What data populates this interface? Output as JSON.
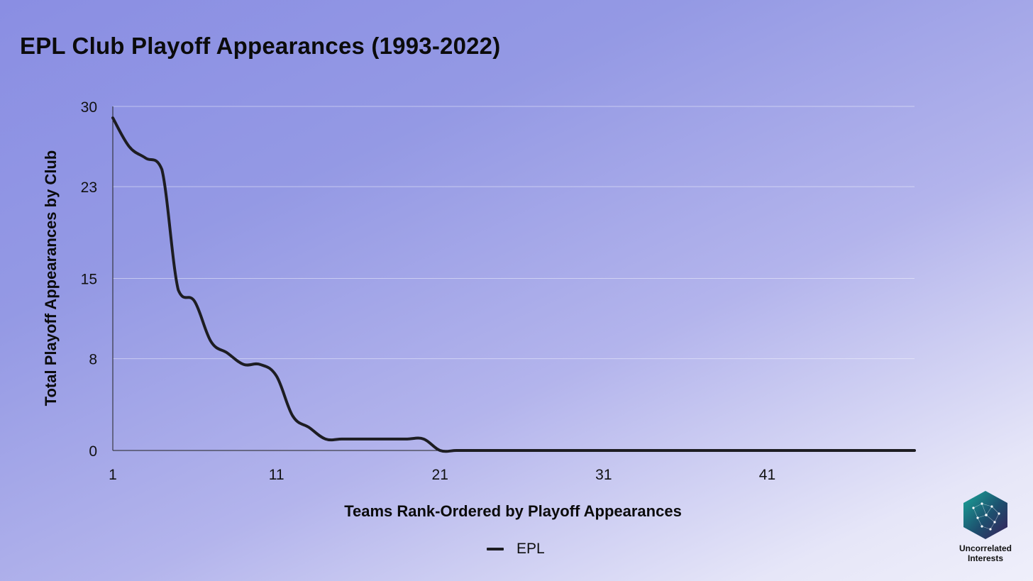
{
  "chart_data": {
    "type": "line",
    "title": "EPL Club Playoff Appearances (1993-2022)",
    "xlabel": "Teams Rank-Ordered by Playoff Appearances",
    "ylabel": "Total Playoff Appearances by Club",
    "xlim": [
      1,
      50
    ],
    "ylim": [
      0,
      30
    ],
    "x_ticks": [
      1,
      11,
      21,
      31,
      41
    ],
    "y_ticks": [
      0,
      8,
      15,
      23,
      30
    ],
    "grid": true,
    "legend_position": "bottom-center",
    "series": [
      {
        "name": "EPL",
        "color": "#1d1d22",
        "x": [
          1,
          2,
          3,
          4,
          5,
          6,
          7,
          8,
          9,
          10,
          11,
          12,
          13,
          14,
          15,
          16,
          17,
          18,
          19,
          20,
          21,
          22,
          23,
          24,
          25,
          26,
          27,
          28,
          29,
          30,
          31,
          32,
          33,
          34,
          35,
          36,
          37,
          38,
          39,
          40,
          41,
          42,
          43,
          44,
          45,
          46,
          47,
          48,
          49,
          50
        ],
        "y": [
          29,
          26.5,
          25.5,
          24.5,
          14,
          13,
          9.5,
          8.5,
          7.5,
          7.5,
          6.5,
          3,
          2,
          1,
          1,
          1,
          1,
          1,
          1,
          1,
          0,
          0,
          0,
          0,
          0,
          0,
          0,
          0,
          0,
          0,
          0,
          0,
          0,
          0,
          0,
          0,
          0,
          0,
          0,
          0,
          0,
          0,
          0,
          0,
          0,
          0,
          0,
          0,
          0,
          0
        ]
      }
    ]
  },
  "legend": {
    "label": "EPL"
  },
  "logo": {
    "text": "Uncorrelated Interests",
    "line1": "Uncorrelated",
    "line2": "Interests",
    "icon": "hexagon-network-icon"
  }
}
